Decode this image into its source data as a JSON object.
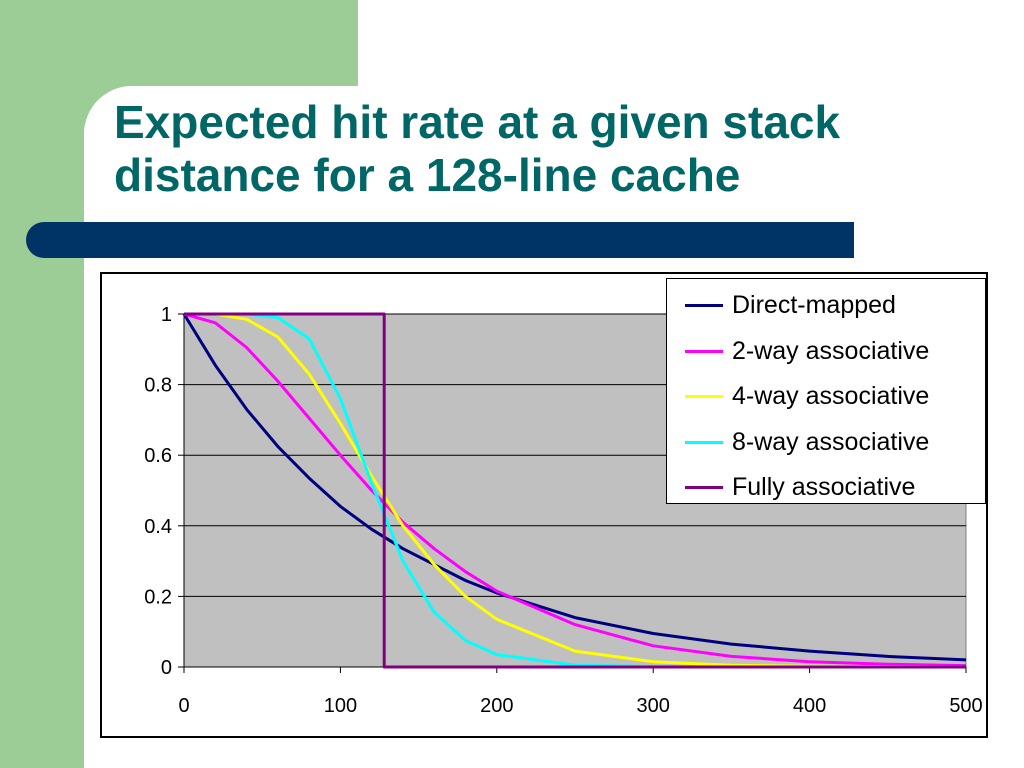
{
  "slide": {
    "title": "Expected hit rate at a given stack distance for a 128-line cache"
  },
  "colors": {
    "background_panel": "#9dcd96",
    "title_text": "#006666",
    "title_bar": "#003366",
    "plot_area": "#c0c0c0"
  },
  "chart_data": {
    "type": "line",
    "title": "",
    "xlabel": "",
    "ylabel": "",
    "xlim": [
      0,
      500
    ],
    "ylim": [
      0,
      1
    ],
    "x_ticks": [
      "0",
      "100",
      "200",
      "300",
      "400",
      "500"
    ],
    "y_ticks": [
      "0",
      "0.2",
      "0.4",
      "0.6",
      "0.8",
      "1"
    ],
    "grid": "horizontal",
    "legend_position": "top-right",
    "x": [
      0,
      20,
      40,
      60,
      80,
      100,
      120,
      140,
      160,
      180,
      200,
      250,
      300,
      350,
      400,
      450,
      500
    ],
    "series": [
      {
        "name": "Direct-mapped",
        "color": "#000080",
        "values": [
          1.0,
          0.855,
          0.73,
          0.625,
          0.535,
          0.455,
          0.39,
          0.335,
          0.29,
          0.245,
          0.21,
          0.14,
          0.095,
          0.065,
          0.045,
          0.03,
          0.02
        ]
      },
      {
        "name": "2-way associative",
        "color": "#ff00ff",
        "values": [
          1.0,
          0.975,
          0.905,
          0.81,
          0.705,
          0.6,
          0.5,
          0.41,
          0.335,
          0.27,
          0.215,
          0.12,
          0.06,
          0.03,
          0.015,
          0.008,
          0.004
        ]
      },
      {
        "name": "4-way associative",
        "color": "#ffff00",
        "values": [
          1.0,
          1.0,
          0.985,
          0.935,
          0.83,
          0.69,
          0.54,
          0.4,
          0.29,
          0.2,
          0.135,
          0.045,
          0.015,
          0.005,
          0.002,
          0.001,
          0.0
        ]
      },
      {
        "name": "8-way associative",
        "color": "#00ffff",
        "values": [
          1.0,
          1.0,
          1.0,
          0.99,
          0.93,
          0.76,
          0.52,
          0.3,
          0.155,
          0.075,
          0.035,
          0.005,
          0.001,
          0.0,
          0.0,
          0.0,
          0.0
        ]
      },
      {
        "name": "Fully associative",
        "color": "#800080",
        "step_at": 128,
        "values": [
          1.0,
          1.0,
          1.0,
          1.0,
          1.0,
          1.0,
          1.0,
          0.0,
          0.0,
          0.0,
          0.0,
          0.0,
          0.0,
          0.0,
          0.0,
          0.0,
          0.0
        ]
      }
    ]
  }
}
